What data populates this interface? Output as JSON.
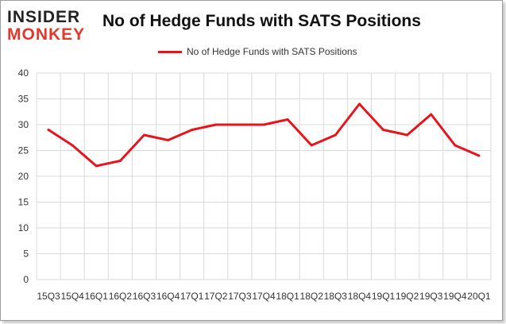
{
  "logo": {
    "line1": "INSIDER",
    "line2": "MONKEY"
  },
  "chart_data": {
    "type": "line",
    "title": "No of Hedge Funds with SATS Positions",
    "categories": [
      "15Q3",
      "15Q4",
      "16Q1",
      "16Q2",
      "16Q3",
      "16Q4",
      "17Q1",
      "17Q2",
      "17Q3",
      "17Q4",
      "18Q1",
      "18Q2",
      "18Q3",
      "18Q4",
      "19Q1",
      "19Q2",
      "19Q3",
      "19Q4",
      "20Q1"
    ],
    "x_tick_labels": [
      "15Q3",
      "15Q4",
      "16Q1",
      "16Q2",
      "16Q3",
      "16Q4",
      "17Q1",
      "17Q2",
      "17Q3",
      "17Q4",
      "18Q1",
      "18Q2",
      "18Q3",
      "18Q4",
      "19Q1",
      "19Q2",
      "19Q3",
      "19Q4",
      "20Q1"
    ],
    "series": [
      {
        "name": "No of Hedge Funds with SATS Positions",
        "color": "#e8141b",
        "values": [
          29,
          26,
          22,
          23,
          28,
          27,
          29,
          30,
          30,
          30,
          31,
          26,
          28,
          34,
          29,
          28,
          32,
          26,
          24
        ]
      }
    ],
    "ylim": [
      0,
      40
    ],
    "yticks": [
      0,
      5,
      10,
      15,
      20,
      25,
      30,
      35,
      40
    ],
    "grid": true,
    "legend_position": "top"
  }
}
